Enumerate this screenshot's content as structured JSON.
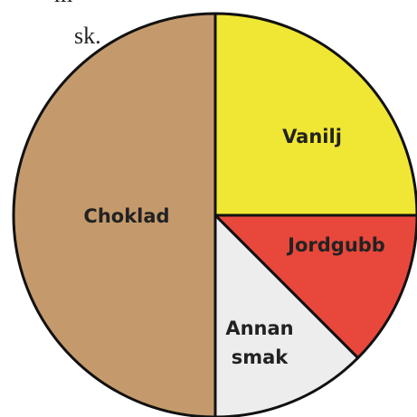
{
  "chart_data": {
    "type": "pie",
    "annotations": [
      "m",
      "sk."
    ],
    "categories": [
      "Vanilj",
      "Jordgubb",
      "Annan smak",
      "Choklad"
    ],
    "values": [
      25,
      12.5,
      12.5,
      50
    ],
    "colors": [
      "#f0e634",
      "#e8473b",
      "#ededed",
      "#c49a6c"
    ]
  }
}
